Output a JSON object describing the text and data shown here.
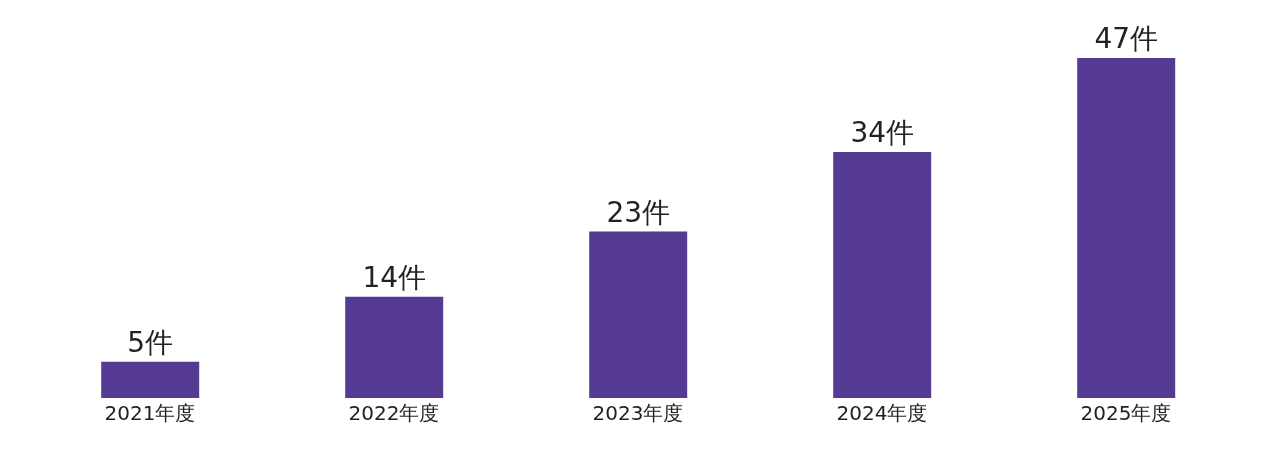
{
  "chart_data": {
    "type": "bar",
    "categories": [
      "2021年度",
      "2022年度",
      "2023年度",
      "2024年度",
      "2025年度"
    ],
    "values": [
      5,
      14,
      23,
      34,
      47
    ],
    "color": "#553a94",
    "value_labels": [
      "5件",
      "14件",
      "23件",
      "34件",
      "47件"
    ],
    "grid": false,
    "legend": false
  }
}
